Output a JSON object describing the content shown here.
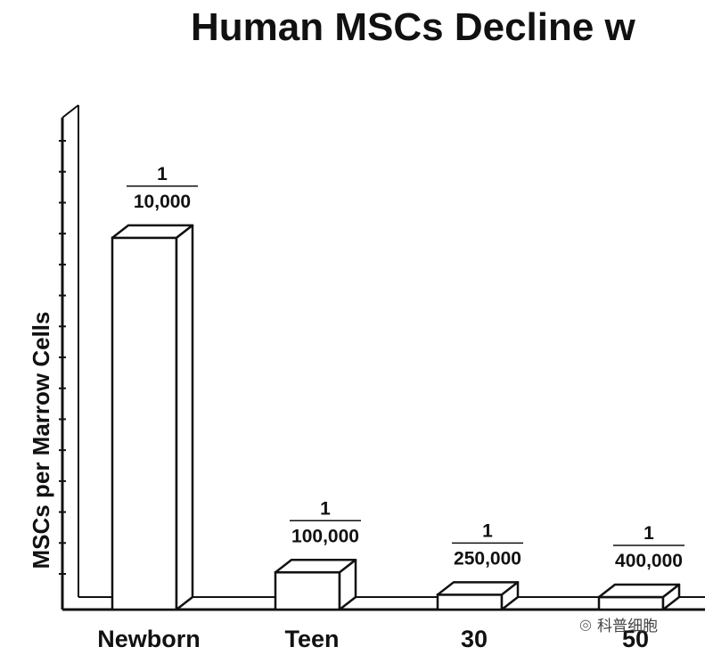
{
  "chart_data": {
    "type": "bar",
    "title": "Human MSCs Decline w",
    "ylabel": "MSCs per Marrow Cells",
    "xlabel": "",
    "categories": [
      "Newborn",
      "Teen",
      "30",
      "50"
    ],
    "values": [
      0.0001,
      1e-05,
      4e-06,
      2.5e-06
    ],
    "value_labels": [
      {
        "numerator": "1",
        "denominator": "10,000"
      },
      {
        "numerator": "1",
        "denominator": "100,000"
      },
      {
        "numerator": "1",
        "denominator": "250,000"
      },
      {
        "numerator": "1",
        "denominator": "400,000"
      }
    ],
    "ylim": [
      0,
      0.00014
    ],
    "grid": false,
    "legend": "none",
    "bar_style": "3d-outline",
    "colors": {
      "stroke": "#111111",
      "fill": "#ffffff",
      "side": "#ffffff"
    }
  },
  "watermark": {
    "icon": "wechat-icon",
    "text": "科普细胞"
  }
}
